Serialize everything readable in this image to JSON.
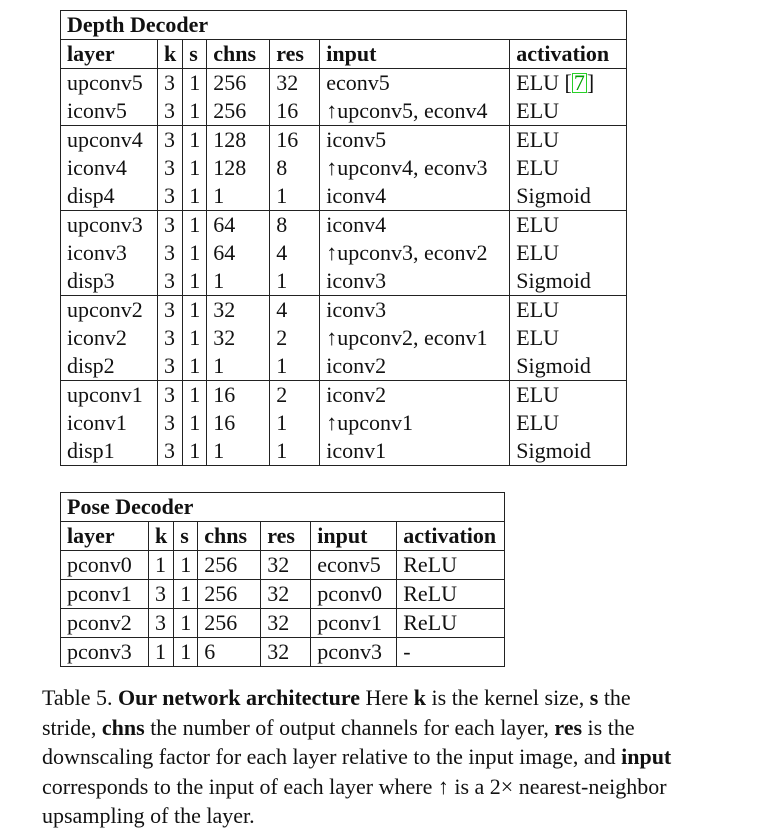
{
  "depth_decoder": {
    "title": "Depth Decoder",
    "headers": [
      "layer",
      "k",
      "s",
      "chns",
      "res",
      "input",
      "activation"
    ],
    "rows": [
      [
        "upconv5",
        "3",
        "1",
        "256",
        "32",
        "econv5",
        "ELU ["
      ],
      [
        "iconv5",
        "3",
        "1",
        "256",
        "16",
        "↑upconv5, econv4",
        "ELU"
      ],
      [
        "upconv4",
        "3",
        "1",
        "128",
        "16",
        "iconv5",
        "ELU"
      ],
      [
        "iconv4",
        "3",
        "1",
        "128",
        "8",
        "↑upconv4, econv3",
        "ELU"
      ],
      [
        "disp4",
        "3",
        "1",
        "1",
        "1",
        "iconv4",
        "Sigmoid"
      ],
      [
        "upconv3",
        "3",
        "1",
        "64",
        "8",
        "iconv4",
        "ELU"
      ],
      [
        "iconv3",
        "3",
        "1",
        "64",
        "4",
        "↑upconv3, econv2",
        "ELU"
      ],
      [
        "disp3",
        "3",
        "1",
        "1",
        "1",
        "iconv3",
        "Sigmoid"
      ],
      [
        "upconv2",
        "3",
        "1",
        "32",
        "4",
        "iconv3",
        "ELU"
      ],
      [
        "iconv2",
        "3",
        "1",
        "32",
        "2",
        "↑upconv2, econv1",
        "ELU"
      ],
      [
        "disp2",
        "3",
        "1",
        "1",
        "1",
        "iconv2",
        "Sigmoid"
      ],
      [
        "upconv1",
        "3",
        "1",
        "16",
        "2",
        "iconv2",
        "ELU"
      ],
      [
        "iconv1",
        "3",
        "1",
        "16",
        "1",
        "↑upconv1",
        "ELU"
      ],
      [
        "disp1",
        "3",
        "1",
        "1",
        "1",
        "iconv1",
        "Sigmoid"
      ]
    ],
    "citation": "7",
    "citation_close": "]"
  },
  "pose_decoder": {
    "title": "Pose Decoder",
    "headers": [
      "layer",
      "k",
      "s",
      "chns",
      "res",
      "input",
      "activation"
    ],
    "rows": [
      [
        "pconv0",
        "1",
        "1",
        "256",
        "32",
        "econv5",
        "ReLU"
      ],
      [
        "pconv1",
        "3",
        "1",
        "256",
        "32",
        "pconv0",
        "ReLU"
      ],
      [
        "pconv2",
        "3",
        "1",
        "256",
        "32",
        "pconv1",
        "ReLU"
      ],
      [
        "pconv3",
        "1",
        "1",
        "6",
        "32",
        "pconv3",
        "-"
      ]
    ]
  },
  "caption": {
    "label": "Table 5.",
    "heading": "Our network architecture",
    "t1": " Here ",
    "k": "k",
    "t2": " is the kernel size, ",
    "s": "s",
    "t3": " the stride, ",
    "chns": "chns",
    "t4": " the number of output channels for each layer, ",
    "res": "res",
    "t5": " is the downscaling factor for each layer relative to the input image, and ",
    "input": "input",
    "t6": " corresponds to the input of each layer where ↑ is a 2× nearest-neighbor upsampling of the layer."
  }
}
